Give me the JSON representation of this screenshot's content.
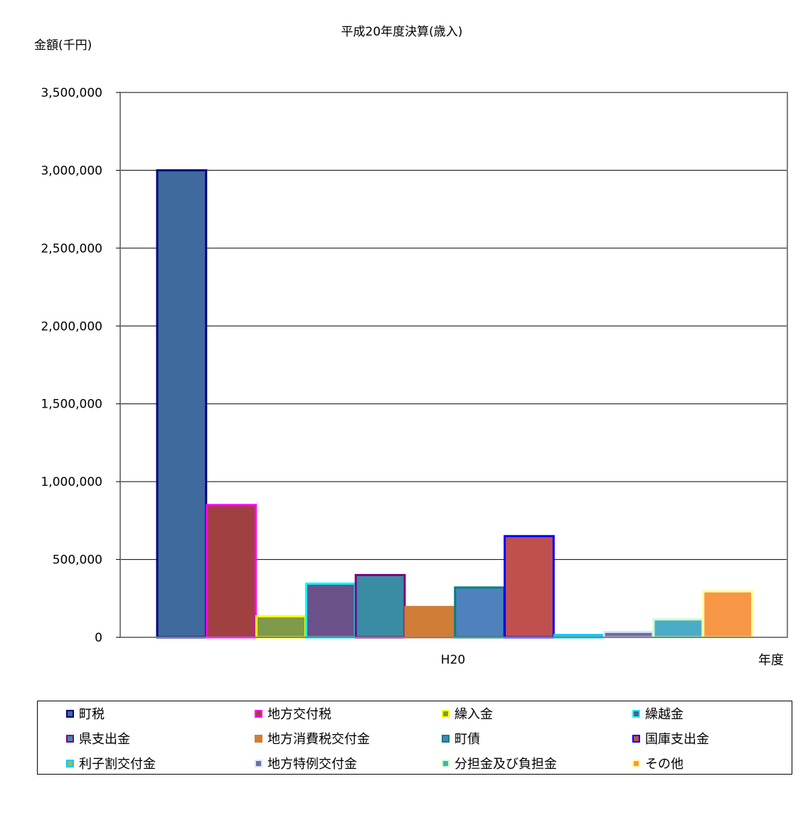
{
  "chart_data": {
    "type": "bar",
    "title": "平成20年度決算(歳入)",
    "ylabel": "金額(千円)",
    "xlabel": "年度",
    "categories": [
      "H20"
    ],
    "ylim": [
      0,
      3500000
    ],
    "yticks": [
      0,
      500000,
      1000000,
      1500000,
      2000000,
      2500000,
      3000000,
      3500000
    ],
    "ytick_labels": [
      "0",
      "500,000",
      "1,000,000",
      "1,500,000",
      "2,000,000",
      "2,500,000",
      "3,000,000",
      "3,500,000"
    ],
    "grid": true,
    "legend_position": "bottom",
    "series": [
      {
        "name": "町税",
        "values": [
          3000000
        ],
        "fill": "#3F6A9E",
        "border": "#000080"
      },
      {
        "name": "地方交付税",
        "values": [
          850000
        ],
        "fill": "#A04040",
        "border": "#FF00FF"
      },
      {
        "name": "繰入金",
        "values": [
          135000
        ],
        "fill": "#7F9A48",
        "border": "#FFFF00"
      },
      {
        "name": "繰越金",
        "values": [
          345000
        ],
        "fill": "#6B5189",
        "border": "#00FFFF"
      },
      {
        "name": "県支出金",
        "values": [
          400000
        ],
        "fill": "#3A8CA4",
        "border": "#800080"
      },
      {
        "name": "地方消費税交付金",
        "values": [
          195000
        ],
        "fill": "#D07D38",
        "border": "#D07D38"
      },
      {
        "name": "町債",
        "values": [
          320000
        ],
        "fill": "#4F81BD",
        "border": "#008080"
      },
      {
        "name": "国庫支出金",
        "values": [
          650000
        ],
        "fill": "#C0504D",
        "border": "#0000FF"
      },
      {
        "name": "利子割交付金",
        "values": [
          15000
        ],
        "fill": "#9BBB59",
        "border": "#00CCFF"
      },
      {
        "name": "地方特例交付金",
        "values": [
          35000
        ],
        "fill": "#8064A2",
        "border": "#CCECFF"
      },
      {
        "name": "分担金及び負担金",
        "values": [
          115000
        ],
        "fill": "#4BACC6",
        "border": "#CCFFCC"
      },
      {
        "name": "その他",
        "values": [
          295000
        ],
        "fill": "#F79646",
        "border": "#FFFF99"
      }
    ]
  }
}
